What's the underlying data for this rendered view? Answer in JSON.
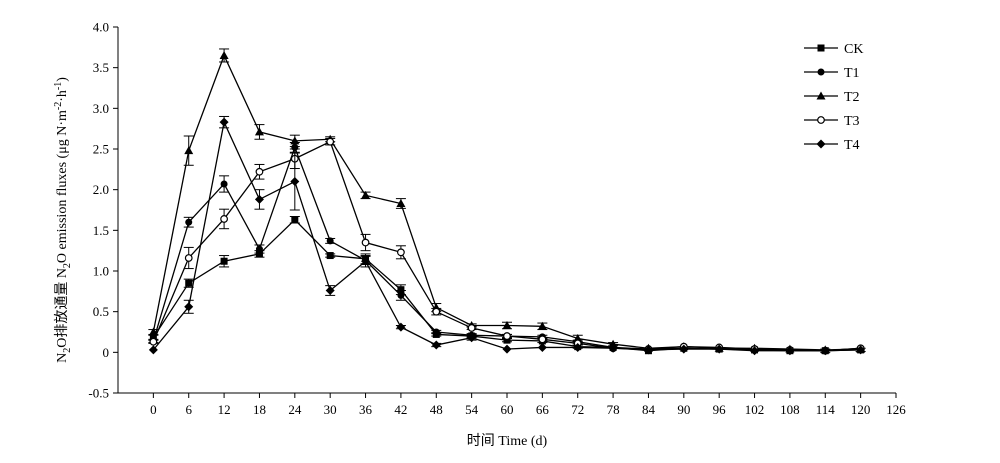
{
  "chart_data": {
    "type": "line",
    "title": "",
    "xlabel": "时间 Time (d)",
    "ylabel": "N₂O排放通量 N₂O emission fluxes (μg N·m⁻²·h⁻¹)",
    "ylabel_parts": {
      "a": "N",
      "a_sub": "2",
      "b": "O排放通量 N",
      "b_sub": "2",
      "c": "O emission fluxes (μg N·m",
      "c_sup1": "-2",
      "d": "·h",
      "c_sup2": "-1",
      "e": ")"
    },
    "xlim": [
      -6,
      126
    ],
    "ylim": [
      -0.5,
      4.0
    ],
    "x_ticks": [
      0,
      6,
      12,
      18,
      24,
      30,
      36,
      42,
      48,
      54,
      60,
      66,
      72,
      78,
      84,
      90,
      96,
      102,
      108,
      114,
      120,
      126
    ],
    "y_ticks": [
      -0.5,
      0,
      0.5,
      1.0,
      1.5,
      2.0,
      2.5,
      3.0,
      3.5,
      4.0
    ],
    "y_tick_labels": [
      "-0.5",
      "0",
      "0.5",
      "1.0",
      "1.5",
      "2.0",
      "2.5",
      "3.0",
      "3.5",
      "4.0"
    ],
    "grid": false,
    "legend_position": "top-right",
    "x": [
      0,
      6,
      12,
      18,
      24,
      30,
      36,
      42,
      48,
      54,
      60,
      66,
      72,
      78,
      84,
      90,
      96,
      102,
      108,
      114,
      120
    ],
    "series": [
      {
        "name": "CK",
        "marker": "square",
        "values": [
          0.18,
          0.85,
          1.12,
          1.21,
          1.63,
          1.19,
          1.15,
          0.77,
          0.22,
          0.2,
          0.15,
          0.14,
          0.07,
          0.06,
          0.02,
          0.05,
          0.04,
          0.03,
          0.02,
          0.02,
          0.03
        ],
        "errors": [
          0.03,
          0.05,
          0.07,
          0.04,
          0.04,
          0.02,
          0.06,
          0.06,
          0.02,
          0.02,
          0.02,
          0.02,
          0.02,
          0.01,
          0.01,
          0.01,
          0.01,
          0.01,
          0.01,
          0.02,
          0.02
        ]
      },
      {
        "name": "T1",
        "marker": "circle",
        "values": [
          0.14,
          1.6,
          2.07,
          1.27,
          2.52,
          1.37,
          1.13,
          0.7,
          0.25,
          0.21,
          0.2,
          0.19,
          0.13,
          0.06,
          0.04,
          0.05,
          0.04,
          0.03,
          0.03,
          0.02,
          0.05
        ],
        "errors": [
          0.02,
          0.06,
          0.1,
          0.05,
          0.06,
          0.03,
          0.05,
          0.06,
          0.02,
          0.02,
          0.02,
          0.02,
          0.02,
          0.01,
          0.01,
          0.01,
          0.01,
          0.01,
          0.01,
          0.01,
          0.01
        ]
      },
      {
        "name": "T2",
        "marker": "triangle",
        "values": [
          0.25,
          2.48,
          3.65,
          2.71,
          2.6,
          2.62,
          1.93,
          1.83,
          0.55,
          0.33,
          0.33,
          0.32,
          0.17,
          0.1,
          0.05,
          0.07,
          0.05,
          0.05,
          0.04,
          0.03,
          0.04
        ],
        "errors": [
          0.03,
          0.18,
          0.08,
          0.09,
          0.07,
          0.03,
          0.04,
          0.06,
          0.05,
          0.02,
          0.04,
          0.04,
          0.04,
          0.02,
          0.01,
          0.01,
          0.01,
          0.01,
          0.01,
          0.01,
          0.01
        ]
      },
      {
        "name": "T3",
        "marker": "open-circle",
        "values": [
          0.13,
          1.16,
          1.64,
          2.22,
          2.38,
          2.59,
          1.35,
          1.23,
          0.5,
          0.3,
          0.2,
          0.16,
          0.11,
          0.05,
          0.04,
          0.07,
          0.06,
          0.04,
          0.03,
          0.02,
          0.05
        ],
        "errors": [
          0.02,
          0.13,
          0.12,
          0.09,
          0.12,
          0.04,
          0.1,
          0.08,
          0.04,
          0.02,
          0.02,
          0.02,
          0.02,
          0.01,
          0.01,
          0.01,
          0.01,
          0.01,
          0.01,
          0.01,
          0.01
        ]
      },
      {
        "name": "T4",
        "marker": "diamond",
        "values": [
          0.03,
          0.56,
          2.83,
          1.88,
          2.1,
          0.76,
          1.12,
          0.31,
          0.09,
          0.18,
          0.04,
          0.06,
          0.06,
          0.05,
          0.03,
          0.04,
          0.04,
          0.02,
          0.02,
          0.02,
          0.03
        ],
        "errors": [
          0.01,
          0.08,
          0.07,
          0.12,
          0.35,
          0.06,
          0.07,
          0.02,
          0.02,
          0.03,
          0.01,
          0.01,
          0.01,
          0.01,
          0.01,
          0.01,
          0.01,
          0.01,
          0.01,
          0.01,
          0.01
        ]
      }
    ]
  }
}
